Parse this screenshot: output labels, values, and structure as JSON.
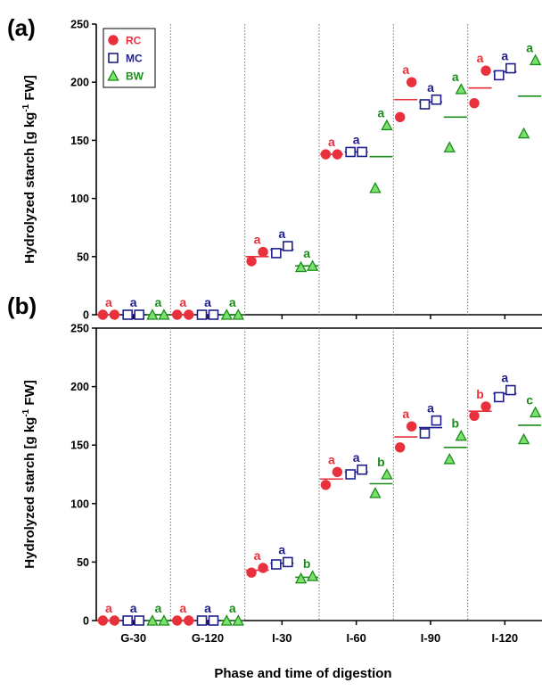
{
  "figure": {
    "xlabel": "Phase and time of digestion",
    "colors": {
      "RC": "#e8313c",
      "MC": "#1f1f8c",
      "BW": "#1b8c1b",
      "BW_fill": "#7be06c"
    }
  },
  "legend": [
    {
      "key": "RC",
      "label": "RC",
      "marker": "circle"
    },
    {
      "key": "MC",
      "label": "MC",
      "marker": "open-square"
    },
    {
      "key": "BW",
      "label": "BW",
      "marker": "triangle"
    }
  ],
  "chart_data": [
    {
      "type": "scatter",
      "panel": "(a)",
      "ylabel": "Hydrolyzed starch [g kg-1 FW]",
      "ylim": [
        0,
        250
      ],
      "yticks": [
        0,
        50,
        100,
        150,
        200,
        250
      ],
      "categories": [
        "G-30",
        "G-120",
        "I-30",
        "I-60",
        "I-90",
        "I-120"
      ],
      "grid": "vertical dotted separators",
      "legend_position": "top-left",
      "series": [
        {
          "name": "RC",
          "points": [
            [
              0,
              0
            ],
            [
              0,
              0
            ],
            [
              46,
              54
            ],
            [
              138,
              138
            ],
            [
              170,
              200
            ],
            [
              182,
              210
            ]
          ],
          "means": [
            0,
            0,
            50,
            138,
            185,
            195
          ],
          "letters": [
            "a",
            "a",
            "a",
            "a",
            "a",
            "a"
          ]
        },
        {
          "name": "MC",
          "points": [
            [
              0,
              0
            ],
            [
              0,
              0
            ],
            [
              53,
              59
            ],
            [
              140,
              140
            ],
            [
              181,
              185
            ],
            [
              206,
              212
            ]
          ],
          "means": [
            0,
            0,
            56,
            140,
            183,
            209
          ],
          "letters": [
            "a",
            "a",
            "a",
            "a",
            "a",
            "a"
          ]
        },
        {
          "name": "BW",
          "points": [
            [
              0,
              0
            ],
            [
              0,
              0
            ],
            [
              41,
              42
            ],
            [
              109,
              163
            ],
            [
              144,
              194
            ],
            [
              156,
              219
            ]
          ],
          "means": [
            0,
            0,
            42,
            136,
            170,
            188
          ],
          "letters": [
            "a",
            "a",
            "a",
            "a",
            "a",
            "a"
          ]
        }
      ]
    },
    {
      "type": "scatter",
      "panel": "(b)",
      "ylabel": "Hydrolyzed starch [g kg-1 FW]",
      "ylim": [
        0,
        250
      ],
      "yticks": [
        0,
        50,
        100,
        150,
        200,
        250
      ],
      "categories": [
        "G-30",
        "G-120",
        "I-30",
        "I-60",
        "I-90",
        "I-120"
      ],
      "grid": "vertical dotted separators",
      "series": [
        {
          "name": "RC",
          "points": [
            [
              0,
              0
            ],
            [
              0,
              0
            ],
            [
              41,
              45
            ],
            [
              116,
              127
            ],
            [
              148,
              166
            ],
            [
              175,
              183
            ]
          ],
          "means": [
            0,
            0,
            43,
            121,
            157,
            179
          ],
          "letters": [
            "a",
            "a",
            "a",
            "a",
            "a",
            "b"
          ]
        },
        {
          "name": "MC",
          "points": [
            [
              0,
              0
            ],
            [
              0,
              0
            ],
            [
              48,
              50
            ],
            [
              125,
              129
            ],
            [
              160,
              171
            ],
            [
              191,
              197
            ]
          ],
          "means": [
            0,
            0,
            49,
            127,
            165,
            194
          ],
          "letters": [
            "a",
            "a",
            "a",
            "a",
            "a",
            "a"
          ]
        },
        {
          "name": "BW",
          "points": [
            [
              0,
              0
            ],
            [
              0,
              0
            ],
            [
              36,
              38
            ],
            [
              109,
              125
            ],
            [
              138,
              158
            ],
            [
              155,
              178
            ]
          ],
          "means": [
            0,
            0,
            37,
            117,
            148,
            167
          ],
          "letters": [
            "a",
            "a",
            "b",
            "b",
            "b",
            "c"
          ]
        }
      ]
    }
  ]
}
